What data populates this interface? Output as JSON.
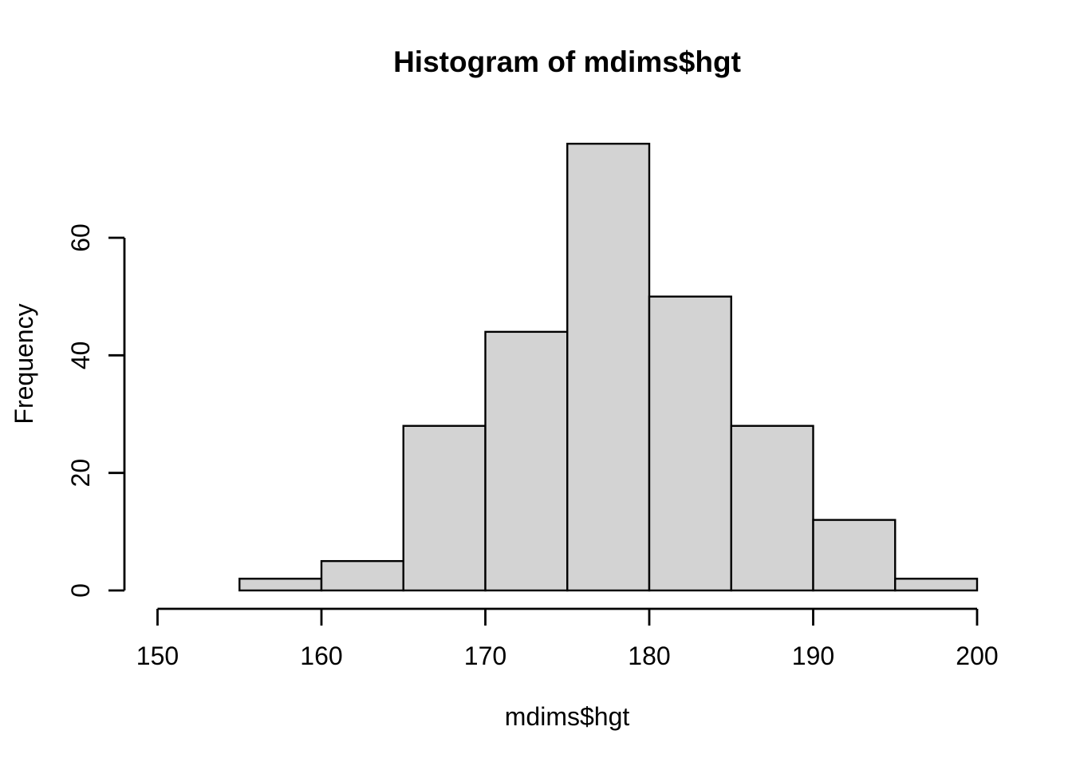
{
  "figure": {
    "title": "Histogram of mdims$hgt",
    "xlabel": "mdims$hgt",
    "ylabel": "Frequency"
  },
  "chart_data": {
    "type": "bar",
    "subtype": "histogram",
    "title": "Histogram of mdims$hgt",
    "xlabel": "mdims$hgt",
    "ylabel": "Frequency",
    "breaks": [
      155,
      160,
      165,
      170,
      175,
      180,
      185,
      190,
      195,
      200
    ],
    "counts": [
      2,
      5,
      28,
      44,
      76,
      50,
      28,
      12,
      2
    ],
    "x_ticks": [
      "150",
      "160",
      "170",
      "180",
      "190",
      "200"
    ],
    "x_tick_values": [
      150,
      160,
      170,
      180,
      190,
      200
    ],
    "y_ticks": [
      "0",
      "20",
      "40",
      "60"
    ],
    "y_tick_values": [
      0,
      20,
      40,
      60
    ],
    "xlim": [
      150,
      200
    ],
    "ylim": [
      0,
      76
    ],
    "grid": false,
    "legend": "none",
    "bar_fill": "#D3D3D3",
    "bar_stroke": "#000000",
    "axis_color": "#000000",
    "text_color": "#000000",
    "background": "#FFFFFF"
  }
}
